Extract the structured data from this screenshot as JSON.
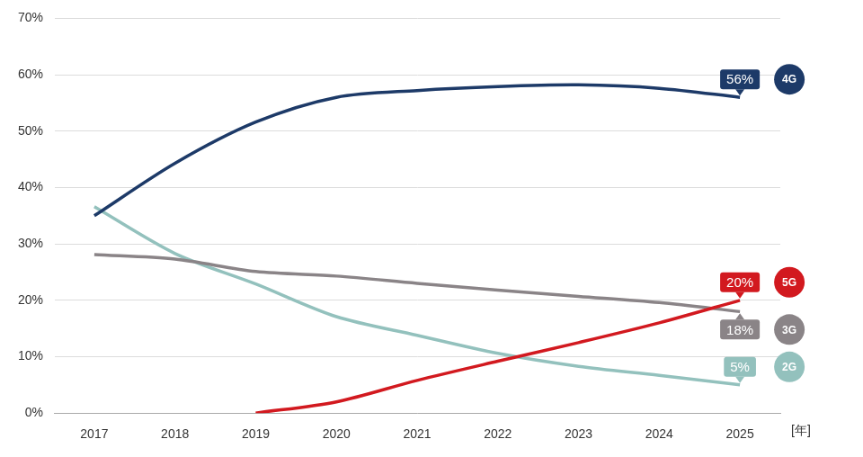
{
  "chart_data": {
    "type": "line",
    "x_label": "[年]",
    "categories": [
      "2017",
      "2018",
      "2019",
      "2020",
      "2021",
      "2022",
      "2023",
      "2024",
      "2025"
    ],
    "series": [
      {
        "name": "4G",
        "color": "#1d3a68",
        "values": [
          35,
          44.3,
          51.6,
          56,
          57.2,
          57.9,
          58.2,
          57.6,
          56
        ],
        "value_labels": [
          null,
          null,
          null,
          null,
          null,
          null,
          null,
          null,
          "56%"
        ]
      },
      {
        "name": "5G",
        "color": "#d2191f",
        "values": [
          null,
          null,
          0,
          2,
          5.8,
          9.2,
          12.5,
          16,
          20
        ],
        "value_labels": [
          null,
          null,
          null,
          null,
          null,
          null,
          null,
          null,
          "20%"
        ]
      },
      {
        "name": "3G",
        "color": "#8a8487",
        "values": [
          28.1,
          27.3,
          25.1,
          24.3,
          23,
          21.8,
          20.7,
          19.6,
          18
        ],
        "value_labels": [
          null,
          null,
          null,
          null,
          null,
          null,
          null,
          null,
          "18%"
        ]
      },
      {
        "name": "2G",
        "color": "#93c1bd",
        "values": [
          36.6,
          28.3,
          22.9,
          17.1,
          13.8,
          10.6,
          8.3,
          6.7,
          5
        ],
        "value_labels": [
          null,
          null,
          null,
          null,
          null,
          null,
          null,
          null,
          "5%"
        ]
      }
    ],
    "ylim": [
      0,
      70
    ],
    "yticks": [
      {
        "value": 0,
        "label": "0%"
      },
      {
        "value": 10,
        "label": "10%"
      },
      {
        "value": 20,
        "label": "20%"
      },
      {
        "value": 30,
        "label": "30%"
      },
      {
        "value": 40,
        "label": "40%"
      },
      {
        "value": 50,
        "label": "50%"
      },
      {
        "value": 60,
        "label": "60%"
      },
      {
        "value": 70,
        "label": "70%"
      }
    ],
    "grid": true
  }
}
